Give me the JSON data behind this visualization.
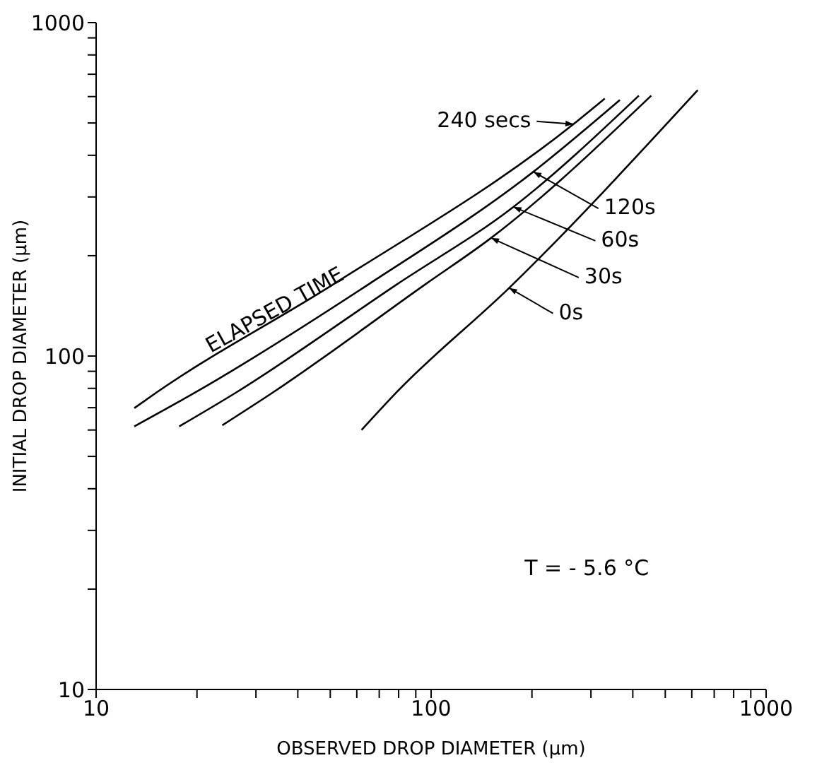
{
  "chart_data": {
    "type": "line",
    "xlabel": "OBSERVED DROP DIAMETER (µm)",
    "ylabel": "INITIAL DROP DIAMETER (µm)",
    "log": "xy",
    "xlim": [
      10,
      1000
    ],
    "ylim": [
      10,
      1000
    ],
    "xticks": [
      10,
      {
        "value": 20,
        "label": null
      },
      {
        "value": 30,
        "label": null
      },
      {
        "value": 40,
        "label": null
      },
      {
        "value": 50,
        "label": null
      },
      {
        "value": 60,
        "label": null
      },
      {
        "value": 70,
        "label": null
      },
      {
        "value": 80,
        "label": null
      },
      {
        "value": 90,
        "label": null
      },
      100,
      {
        "value": 200,
        "label": null
      },
      {
        "value": 300,
        "label": null
      },
      {
        "value": 400,
        "label": null
      },
      {
        "value": 500,
        "label": null
      },
      {
        "value": 600,
        "label": null
      },
      {
        "value": 700,
        "label": null
      },
      {
        "value": 800,
        "label": null
      },
      {
        "value": 900,
        "label": null
      },
      1000
    ],
    "yticks": [
      10,
      {
        "value": 20,
        "label": null
      },
      {
        "value": 30,
        "label": null
      },
      {
        "value": 40,
        "label": null
      },
      {
        "value": 50,
        "label": null
      },
      {
        "value": 60,
        "label": null
      },
      {
        "value": 70,
        "label": null
      },
      {
        "value": 80,
        "label": null
      },
      {
        "value": 90,
        "label": null
      },
      100,
      {
        "value": 200,
        "label": null
      },
      {
        "value": 300,
        "label": null
      },
      {
        "value": 400,
        "label": null
      },
      {
        "value": 500,
        "label": null
      },
      {
        "value": 600,
        "label": null
      },
      {
        "value": 700,
        "label": null
      },
      {
        "value": 800,
        "label": null
      },
      {
        "value": 900,
        "label": null
      },
      1000
    ],
    "marker": "none",
    "line_style": "solid",
    "series": [
      {
        "color": "#000000",
        "x": [
          13,
          15.1,
          51,
          266,
          330
        ],
        "values": [
          69.8,
          77.6,
          164,
          496,
          592
        ]
      },
      {
        "color": "#000000",
        "x": [
          13,
          19.7,
          65,
          202,
          366
        ],
        "values": [
          61.5,
          77.6,
          164,
          357,
          586
        ]
      },
      {
        "color": "#000000",
        "x": [
          17.7,
          26.1,
          79,
          176,
          417
        ],
        "values": [
          61.5,
          77.6,
          164,
          280,
          604
        ]
      },
      {
        "color": "#000000",
        "x": [
          23.8,
          33.6,
          96,
          151,
          454
        ],
        "values": [
          62,
          77.6,
          164,
          226,
          604
        ]
      },
      {
        "color": "#000000",
        "x": [
          62,
          79,
          171,
          625
        ],
        "values": [
          60,
          78,
          160,
          627
        ]
      }
    ],
    "annotations": [
      {
        "text": "240 secs",
        "x": 266,
        "y": 496
      },
      {
        "text": "120s",
        "x": 202,
        "y": 357
      },
      {
        "text": "60s",
        "x": 176,
        "y": 280
      },
      {
        "text": "30s",
        "x": 151,
        "y": 226
      },
      {
        "text": "0s",
        "x": 171,
        "y": 160
      },
      "ELAPSED TIME",
      "T = - 5.6 °C"
    ]
  }
}
